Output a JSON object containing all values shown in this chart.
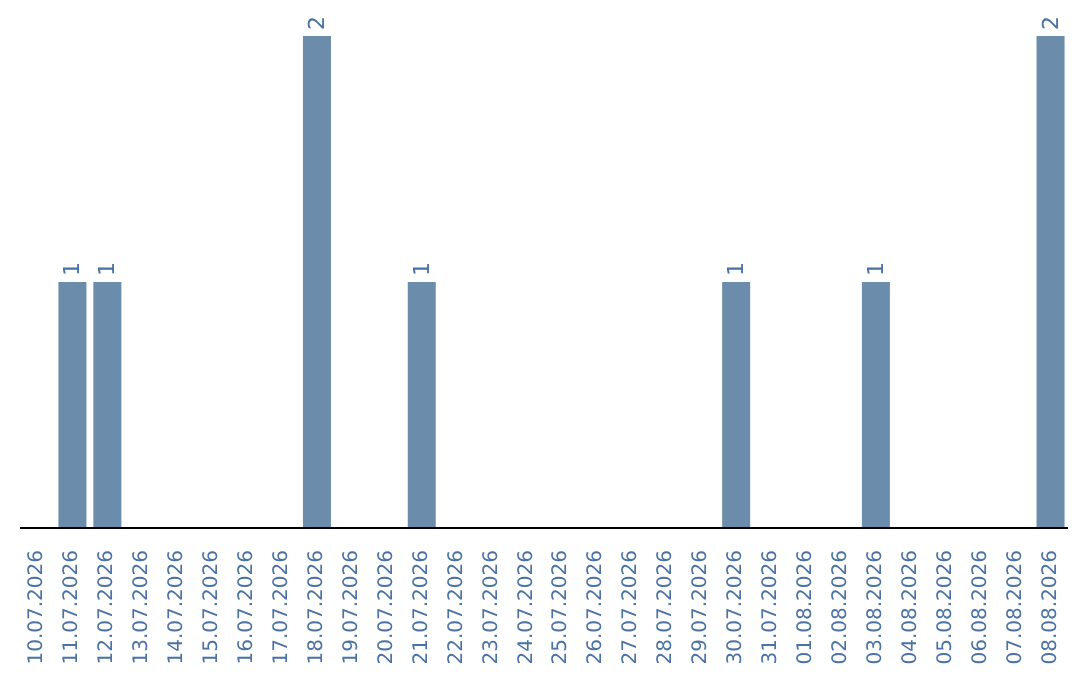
{
  "chart_data": {
    "type": "bar",
    "categories": [
      "10.07.2026",
      "11.07.2026",
      "12.07.2026",
      "13.07.2026",
      "14.07.2026",
      "15.07.2026",
      "16.07.2026",
      "17.07.2026",
      "18.07.2026",
      "19.07.2026",
      "20.07.2026",
      "21.07.2026",
      "22.07.2026",
      "23.07.2026",
      "24.07.2026",
      "25.07.2026",
      "26.07.2026",
      "27.07.2026",
      "28.07.2026",
      "29.07.2026",
      "30.07.2026",
      "31.07.2026",
      "01.08.2026",
      "02.08.2026",
      "03.08.2026",
      "04.08.2026",
      "05.08.2026",
      "06.08.2026",
      "07.08.2026",
      "08.08.2026"
    ],
    "values": [
      0,
      1,
      1,
      0,
      0,
      0,
      0,
      0,
      2,
      0,
      0,
      1,
      0,
      0,
      0,
      0,
      0,
      0,
      0,
      0,
      1,
      0,
      0,
      0,
      1,
      0,
      0,
      0,
      0,
      2
    ],
    "value_labels": [
      null,
      "1",
      "1",
      null,
      null,
      null,
      null,
      null,
      "2",
      null,
      null,
      "1",
      null,
      null,
      null,
      null,
      null,
      null,
      null,
      null,
      "1",
      null,
      null,
      null,
      "1",
      null,
      null,
      null,
      null,
      "2"
    ],
    "color": "#6b8caa",
    "ylim": [
      0,
      2
    ],
    "tick_labels": "x",
    "grid": false,
    "legend": false
  }
}
